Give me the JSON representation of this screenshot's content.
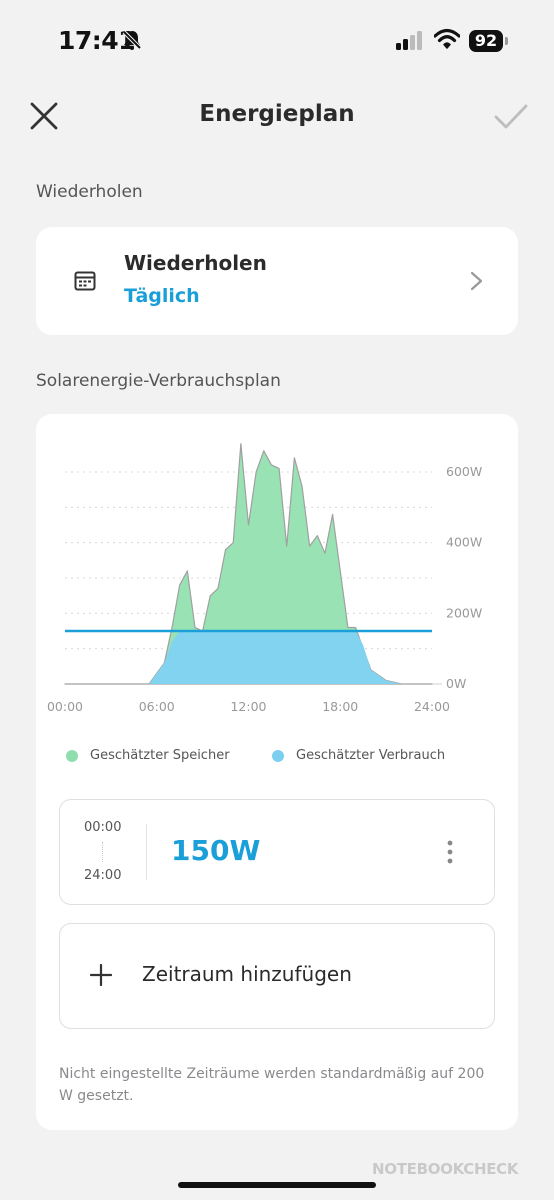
{
  "status_bar": {
    "time": "17:41",
    "battery": "92",
    "icons": [
      "bell-slash-icon",
      "cellular-signal-icon",
      "wifi-icon",
      "battery-icon"
    ]
  },
  "nav": {
    "title": "Energieplan",
    "close_icon": "close-icon",
    "confirm_icon": "checkmark-icon"
  },
  "repeat_section": {
    "label": "Wiederholen",
    "card_title": "Wiederholen",
    "card_value": "Täglich",
    "icon": "calendar-icon"
  },
  "plan_section": {
    "label": "Solarenergie-Verbrauchsplan",
    "legend": [
      {
        "label": "Geschätzter Speicher",
        "color": "#8fdfae"
      },
      {
        "label": "Geschätzter Verbrauch",
        "color": "#7dcff0"
      }
    ],
    "slot": {
      "start": "00:00",
      "end": "24:00",
      "value": "150W"
    },
    "add_label": "Zeitraum hinzufügen",
    "footnote": "Nicht eingestellte Zeiträume werden standardmäßig auf 200 W gesetzt."
  },
  "watermark": "NOTEBOOKCHECK",
  "colors": {
    "accent": "#1a9fd8",
    "storage_fill": "#98e2b4",
    "consumption_fill": "#82d3f0",
    "plan_line": "#1a9fd8"
  },
  "chart_data": {
    "type": "area",
    "x_ticks": [
      "00:00",
      "06:00",
      "12:00",
      "18:00",
      "24:00"
    ],
    "y_ticks": [
      "0W",
      "200W",
      "400W",
      "600W"
    ],
    "xlim": [
      0,
      24
    ],
    "ylim": [
      0,
      600
    ],
    "grid": true,
    "legend_position": "bottom",
    "series": [
      {
        "name": "Geschätzter Speicher",
        "x": [
          0,
          5.5,
          6.0,
          6.5,
          7.0,
          7.5,
          8.0,
          8.5,
          9.0,
          9.5,
          10.0,
          10.5,
          11.0,
          11.5,
          12.0,
          12.5,
          13.0,
          13.5,
          14.0,
          14.5,
          15.0,
          15.5,
          16.0,
          16.5,
          17.0,
          17.5,
          18.0,
          18.5,
          19.0,
          20.0,
          21.0,
          22.0,
          24.0
        ],
        "y": [
          0,
          0,
          30,
          60,
          160,
          280,
          320,
          160,
          150,
          250,
          270,
          380,
          400,
          680,
          450,
          600,
          660,
          620,
          610,
          390,
          640,
          560,
          390,
          420,
          370,
          480,
          320,
          160,
          160,
          40,
          10,
          0,
          0
        ]
      },
      {
        "name": "Geschätzter Verbrauch",
        "x": [
          0,
          5.5,
          6.0,
          6.5,
          7.0,
          7.5,
          8.0,
          8.5,
          9.0,
          18.0,
          18.5,
          19.0,
          19.5,
          20.0,
          21.0,
          22.0,
          24.0
        ],
        "y": [
          0,
          0,
          30,
          60,
          120,
          150,
          150,
          150,
          150,
          150,
          150,
          150,
          110,
          40,
          10,
          0,
          0
        ]
      },
      {
        "name": "",
        "x": [
          0,
          24
        ],
        "y": [
          150,
          150
        ]
      }
    ]
  }
}
